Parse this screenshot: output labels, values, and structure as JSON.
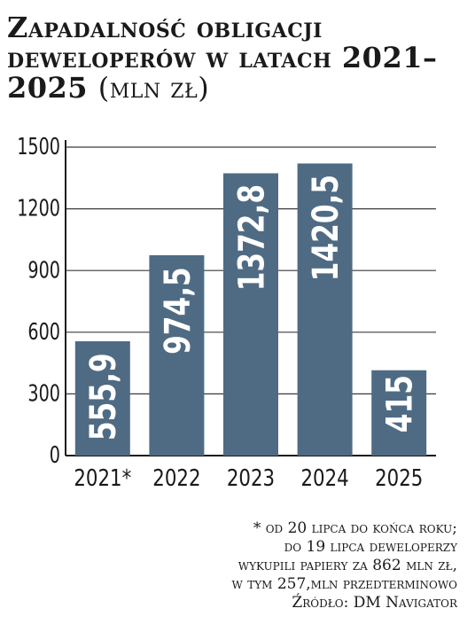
{
  "title": {
    "main": "Zapadalność obligacji deweloperów w latach 2021–2025",
    "unit": "(mln zł)"
  },
  "chart_data": {
    "type": "bar",
    "categories": [
      "2021*",
      "2022",
      "2023",
      "2024",
      "2025"
    ],
    "values": [
      555.9,
      974.5,
      1372.8,
      1420.5,
      415
    ],
    "value_labels": [
      "555,9",
      "974,5",
      "1372,8",
      "1420,5",
      "415"
    ],
    "ylim": [
      0,
      1500
    ],
    "yticks": [
      0,
      300,
      600,
      900,
      1200,
      1500
    ],
    "grid": true,
    "bar_color": "#4f6b84",
    "grid_color": "#3a3a3a",
    "label_color_inside": "#ffffff",
    "label_color_outside": "#1a1a1a"
  },
  "footnote": {
    "lines": [
      "* od 20 lipca do końca roku;",
      "do 19 lipca deweloperzy",
      "wykupili papiery za 862 mln zł,",
      "w tym 257,mln przedterminowo",
      "Źródło: DM Navigator"
    ]
  }
}
